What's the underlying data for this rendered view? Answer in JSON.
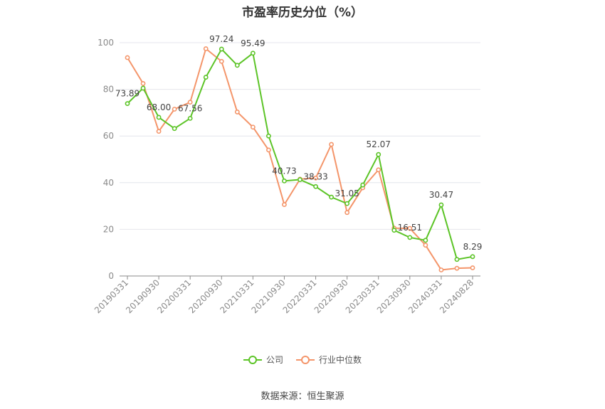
{
  "title": "市盈率历史分位（%）",
  "source": "数据来源：恒生聚源",
  "chart_data": {
    "type": "line",
    "title": "市盈率历史分位（%）",
    "ylim": [
      0,
      100
    ],
    "yticks": [
      "0",
      "20",
      "40",
      "60",
      "80",
      "100"
    ],
    "tick_labels": [
      "20190331",
      "20190930",
      "20200331",
      "20200930",
      "20210331",
      "20210930",
      "20220331",
      "20220930",
      "20230331",
      "20230930",
      "20240331",
      "20240828"
    ],
    "grid": true,
    "legend_position": "bottom",
    "series": [
      {
        "name": "公司",
        "color": "#5cc427",
        "values": [
          73.89,
          80.5,
          68.0,
          63.2,
          67.56,
          85.2,
          97.24,
          90.3,
          95.49,
          60.0,
          40.73,
          41.3,
          38.33,
          33.8,
          31.05,
          39.0,
          52.07,
          19.6,
          16.51,
          15.3,
          30.47,
          7.1,
          8.29
        ],
        "labels": [
          "73.89",
          "",
          "68.00",
          "",
          "67.56",
          "",
          "97.24",
          "",
          "95.49",
          "",
          "40.73",
          "",
          "38.33",
          "",
          "31.05",
          "",
          "52.07",
          "",
          "16.51",
          "",
          "30.47",
          "",
          "8.29"
        ]
      },
      {
        "name": "行业中位数",
        "color": "#f4956a",
        "values": [
          93.6,
          82.5,
          62.0,
          71.5,
          74.5,
          97.4,
          92.0,
          70.3,
          63.8,
          54.0,
          30.6,
          41.5,
          42.0,
          56.4,
          27.2,
          37.8,
          45.5,
          20.5,
          20.4,
          13.2,
          2.6,
          3.3,
          3.5
        ]
      }
    ]
  }
}
